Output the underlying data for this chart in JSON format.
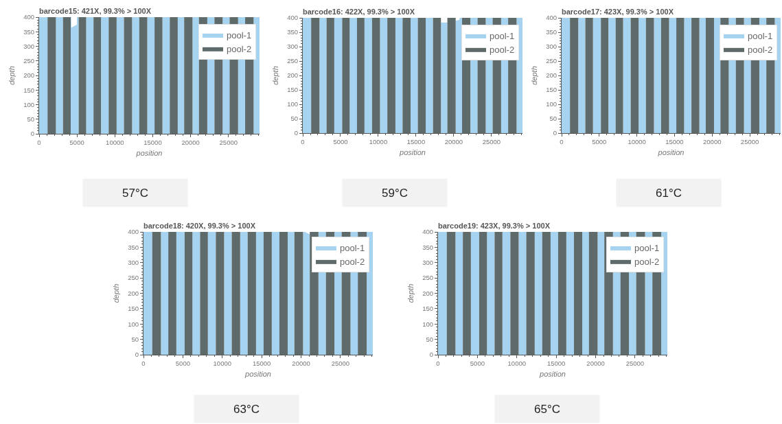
{
  "chart_data": [
    {
      "type": "area",
      "title": "barcode15: 421X, 99.3% > 100X",
      "xlabel": "position",
      "ylabel": "depth",
      "annotations": [
        "57°C"
      ],
      "legend": "top right",
      "xlim": [
        0,
        29100
      ],
      "xticks": [
        0,
        {
          "value": 1000,
          "label": null
        },
        {
          "value": 2000,
          "label": null
        },
        {
          "value": 3000,
          "label": null
        },
        {
          "value": 4000,
          "label": null
        },
        5000,
        {
          "value": 6000,
          "label": null
        },
        {
          "value": 7000,
          "label": null
        },
        {
          "value": 8000,
          "label": null
        },
        {
          "value": 9000,
          "label": null
        },
        10000,
        {
          "value": 11000,
          "label": null
        },
        {
          "value": 12000,
          "label": null
        },
        {
          "value": 13000,
          "label": null
        },
        {
          "value": 14000,
          "label": null
        },
        15000,
        {
          "value": 16000,
          "label": null
        },
        {
          "value": 17000,
          "label": null
        },
        {
          "value": 18000,
          "label": null
        },
        {
          "value": 19000,
          "label": null
        },
        20000,
        {
          "value": 21000,
          "label": null
        },
        {
          "value": 22000,
          "label": null
        },
        {
          "value": 23000,
          "label": null
        },
        {
          "value": 24000,
          "label": null
        },
        25000,
        {
          "value": 26000,
          "label": null
        },
        {
          "value": 27000,
          "label": null
        },
        {
          "value": 28000,
          "label": null
        },
        {
          "value": 29000,
          "label": null
        }
      ],
      "ylim": [
        0,
        400
      ],
      "yticks": [
        0,
        {
          "value": 10,
          "label": null
        },
        {
          "value": 20,
          "label": null
        },
        {
          "value": 30,
          "label": null
        },
        {
          "value": 40,
          "label": null
        },
        50,
        {
          "value": 60,
          "label": null
        },
        {
          "value": 70,
          "label": null
        },
        {
          "value": 80,
          "label": null
        },
        {
          "value": 90,
          "label": null
        },
        100,
        {
          "value": 110,
          "label": null
        },
        {
          "value": 120,
          "label": null
        },
        {
          "value": 130,
          "label": null
        },
        {
          "value": 140,
          "label": null
        },
        150,
        {
          "value": 160,
          "label": null
        },
        {
          "value": 170,
          "label": null
        },
        {
          "value": 180,
          "label": null
        },
        {
          "value": 190,
          "label": null
        },
        200,
        {
          "value": 210,
          "label": null
        },
        {
          "value": 220,
          "label": null
        },
        {
          "value": 230,
          "label": null
        },
        {
          "value": 240,
          "label": null
        },
        250,
        {
          "value": 260,
          "label": null
        },
        {
          "value": 270,
          "label": null
        },
        {
          "value": 280,
          "label": null
        },
        {
          "value": 290,
          "label": null
        },
        300,
        {
          "value": 310,
          "label": null
        },
        {
          "value": 320,
          "label": null
        },
        {
          "value": 330,
          "label": null
        },
        {
          "value": 340,
          "label": null
        },
        350,
        {
          "value": 360,
          "label": null
        },
        {
          "value": 370,
          "label": null
        },
        {
          "value": 380,
          "label": null
        },
        {
          "value": 390,
          "label": null
        },
        400
      ],
      "series": [
        {
          "name": "pool-1",
          "color": "#a6d3f0",
          "x": [
            0,
            1110,
            null,
            2210,
            3150,
            null,
            4170,
            4230,
            4240,
            4975,
            4985,
            5220,
            null,
            6210,
            7180,
            null,
            8170,
            9180,
            null,
            10230,
            11200,
            null,
            12270,
            13220,
            null,
            14280,
            15240,
            null,
            16280,
            17250,
            null,
            18300,
            19150,
            null,
            20250,
            21100,
            null,
            22200,
            23150,
            null,
            24230,
            25150,
            null,
            26270,
            27200,
            null,
            28320,
            29100
          ],
          "values": [
            400,
            400,
            null,
            400,
            400,
            null,
            400,
            400,
            364,
            374,
            400,
            400,
            null,
            400,
            400,
            null,
            400,
            400,
            null,
            400,
            400,
            null,
            400,
            400,
            null,
            400,
            400,
            null,
            400,
            400,
            null,
            400,
            400,
            null,
            400,
            400,
            null,
            400,
            400,
            null,
            400,
            400,
            null,
            400,
            400,
            null,
            400,
            400
          ]
        },
        {
          "name": "pool-2",
          "color": "#5f6b6b",
          "x": [
            1110,
            2210,
            null,
            3150,
            4170,
            null,
            5220,
            6210,
            null,
            7180,
            8170,
            null,
            9180,
            10230,
            null,
            11200,
            12270,
            null,
            13220,
            14280,
            null,
            15240,
            16280,
            null,
            17250,
            18300,
            null,
            19150,
            20250,
            null,
            21100,
            22200,
            null,
            23150,
            24230,
            null,
            25150,
            26270,
            null,
            27200,
            28320
          ],
          "values": [
            400,
            400,
            null,
            400,
            400,
            null,
            400,
            400,
            null,
            400,
            400,
            null,
            400,
            400,
            null,
            400,
            400,
            null,
            400,
            400,
            null,
            400,
            400,
            null,
            400,
            400,
            null,
            400,
            400,
            null,
            400,
            400,
            null,
            400,
            400,
            null,
            400,
            400,
            null,
            400,
            400
          ]
        }
      ]
    },
    {
      "type": "area",
      "title": "barcode16: 422X, 99.3% > 100X",
      "xlabel": "position",
      "ylabel": "depth",
      "annotations": [
        "59°C"
      ],
      "legend": "top right",
      "xlim": [
        0,
        29100
      ],
      "xticks": [
        0,
        {
          "value": 1000,
          "label": null
        },
        {
          "value": 2000,
          "label": null
        },
        {
          "value": 3000,
          "label": null
        },
        {
          "value": 4000,
          "label": null
        },
        5000,
        {
          "value": 6000,
          "label": null
        },
        {
          "value": 7000,
          "label": null
        },
        {
          "value": 8000,
          "label": null
        },
        {
          "value": 9000,
          "label": null
        },
        10000,
        {
          "value": 11000,
          "label": null
        },
        {
          "value": 12000,
          "label": null
        },
        {
          "value": 13000,
          "label": null
        },
        {
          "value": 14000,
          "label": null
        },
        15000,
        {
          "value": 16000,
          "label": null
        },
        {
          "value": 17000,
          "label": null
        },
        {
          "value": 18000,
          "label": null
        },
        {
          "value": 19000,
          "label": null
        },
        20000,
        {
          "value": 21000,
          "label": null
        },
        {
          "value": 22000,
          "label": null
        },
        {
          "value": 23000,
          "label": null
        },
        {
          "value": 24000,
          "label": null
        },
        25000,
        {
          "value": 26000,
          "label": null
        },
        {
          "value": 27000,
          "label": null
        },
        {
          "value": 28000,
          "label": null
        },
        {
          "value": 29000,
          "label": null
        }
      ],
      "ylim": [
        0,
        400
      ],
      "yticks": [
        0,
        {
          "value": 10,
          "label": null
        },
        {
          "value": 20,
          "label": null
        },
        {
          "value": 30,
          "label": null
        },
        {
          "value": 40,
          "label": null
        },
        50,
        {
          "value": 60,
          "label": null
        },
        {
          "value": 70,
          "label": null
        },
        {
          "value": 80,
          "label": null
        },
        {
          "value": 90,
          "label": null
        },
        100,
        {
          "value": 110,
          "label": null
        },
        {
          "value": 120,
          "label": null
        },
        {
          "value": 130,
          "label": null
        },
        {
          "value": 140,
          "label": null
        },
        150,
        {
          "value": 160,
          "label": null
        },
        {
          "value": 170,
          "label": null
        },
        {
          "value": 180,
          "label": null
        },
        {
          "value": 190,
          "label": null
        },
        200,
        {
          "value": 210,
          "label": null
        },
        {
          "value": 220,
          "label": null
        },
        {
          "value": 230,
          "label": null
        },
        {
          "value": 240,
          "label": null
        },
        250,
        {
          "value": 260,
          "label": null
        },
        {
          "value": 270,
          "label": null
        },
        {
          "value": 280,
          "label": null
        },
        {
          "value": 290,
          "label": null
        },
        300,
        {
          "value": 310,
          "label": null
        },
        {
          "value": 320,
          "label": null
        },
        {
          "value": 330,
          "label": null
        },
        {
          "value": 340,
          "label": null
        },
        350,
        {
          "value": 360,
          "label": null
        },
        {
          "value": 370,
          "label": null
        },
        {
          "value": 380,
          "label": null
        },
        {
          "value": 390,
          "label": null
        },
        400
      ],
      "series": [
        {
          "name": "pool-1",
          "color": "#a6d3f0",
          "x": [
            0,
            1110,
            null,
            2210,
            3150,
            null,
            4170,
            5220,
            null,
            6210,
            7180,
            null,
            8170,
            9180,
            null,
            10230,
            11200,
            null,
            12270,
            13220,
            null,
            14280,
            15240,
            null,
            16280,
            17250,
            null,
            18300,
            19150,
            null,
            20250,
            20750,
            20760,
            21100,
            null,
            22200,
            23150,
            null,
            24230,
            25150,
            null,
            26270,
            27200,
            null,
            28320,
            29100
          ],
          "values": [
            400,
            400,
            null,
            400,
            400,
            null,
            400,
            400,
            null,
            400,
            400,
            null,
            400,
            400,
            null,
            400,
            400,
            null,
            400,
            400,
            null,
            400,
            400,
            null,
            400,
            400,
            null,
            384,
            384,
            null,
            390,
            393,
            400,
            400,
            null,
            400,
            400,
            null,
            400,
            400,
            null,
            400,
            400,
            null,
            400,
            400
          ]
        },
        {
          "name": "pool-2",
          "color": "#5f6b6b",
          "x": [
            1110,
            2210,
            null,
            3150,
            4170,
            null,
            5220,
            6210,
            null,
            7180,
            8170,
            null,
            9180,
            10230,
            null,
            11200,
            12270,
            null,
            13220,
            14280,
            null,
            15240,
            16280,
            null,
            17250,
            18300,
            null,
            19150,
            20250,
            null,
            21100,
            22200,
            null,
            23150,
            24230,
            null,
            25150,
            26270,
            null,
            27200,
            28320
          ],
          "values": [
            400,
            400,
            null,
            400,
            400,
            null,
            400,
            400,
            null,
            400,
            400,
            null,
            400,
            400,
            null,
            400,
            400,
            null,
            400,
            400,
            null,
            400,
            400,
            null,
            400,
            400,
            null,
            400,
            400,
            null,
            400,
            400,
            null,
            400,
            400,
            null,
            400,
            400,
            null,
            400,
            400
          ]
        }
      ]
    },
    {
      "type": "area",
      "title": "barcode17: 423X, 99.3% > 100X",
      "xlabel": "position",
      "ylabel": "depth",
      "annotations": [
        "61°C"
      ],
      "legend": "top right",
      "xlim": [
        0,
        29100
      ],
      "xticks": [
        0,
        {
          "value": 1000,
          "label": null
        },
        {
          "value": 2000,
          "label": null
        },
        {
          "value": 3000,
          "label": null
        },
        {
          "value": 4000,
          "label": null
        },
        5000,
        {
          "value": 6000,
          "label": null
        },
        {
          "value": 7000,
          "label": null
        },
        {
          "value": 8000,
          "label": null
        },
        {
          "value": 9000,
          "label": null
        },
        10000,
        {
          "value": 11000,
          "label": null
        },
        {
          "value": 12000,
          "label": null
        },
        {
          "value": 13000,
          "label": null
        },
        {
          "value": 14000,
          "label": null
        },
        15000,
        {
          "value": 16000,
          "label": null
        },
        {
          "value": 17000,
          "label": null
        },
        {
          "value": 18000,
          "label": null
        },
        {
          "value": 19000,
          "label": null
        },
        20000,
        {
          "value": 21000,
          "label": null
        },
        {
          "value": 22000,
          "label": null
        },
        {
          "value": 23000,
          "label": null
        },
        {
          "value": 24000,
          "label": null
        },
        25000,
        {
          "value": 26000,
          "label": null
        },
        {
          "value": 27000,
          "label": null
        },
        {
          "value": 28000,
          "label": null
        },
        {
          "value": 29000,
          "label": null
        }
      ],
      "ylim": [
        0,
        400
      ],
      "yticks": [
        0,
        {
          "value": 10,
          "label": null
        },
        {
          "value": 20,
          "label": null
        },
        {
          "value": 30,
          "label": null
        },
        {
          "value": 40,
          "label": null
        },
        50,
        {
          "value": 60,
          "label": null
        },
        {
          "value": 70,
          "label": null
        },
        {
          "value": 80,
          "label": null
        },
        {
          "value": 90,
          "label": null
        },
        100,
        {
          "value": 110,
          "label": null
        },
        {
          "value": 120,
          "label": null
        },
        {
          "value": 130,
          "label": null
        },
        {
          "value": 140,
          "label": null
        },
        150,
        {
          "value": 160,
          "label": null
        },
        {
          "value": 170,
          "label": null
        },
        {
          "value": 180,
          "label": null
        },
        {
          "value": 190,
          "label": null
        },
        200,
        {
          "value": 210,
          "label": null
        },
        {
          "value": 220,
          "label": null
        },
        {
          "value": 230,
          "label": null
        },
        {
          "value": 240,
          "label": null
        },
        250,
        {
          "value": 260,
          "label": null
        },
        {
          "value": 270,
          "label": null
        },
        {
          "value": 280,
          "label": null
        },
        {
          "value": 290,
          "label": null
        },
        300,
        {
          "value": 310,
          "label": null
        },
        {
          "value": 320,
          "label": null
        },
        {
          "value": 330,
          "label": null
        },
        {
          "value": 340,
          "label": null
        },
        350,
        {
          "value": 360,
          "label": null
        },
        {
          "value": 370,
          "label": null
        },
        {
          "value": 380,
          "label": null
        },
        {
          "value": 390,
          "label": null
        },
        400
      ],
      "series": [
        {
          "name": "pool-1",
          "color": "#a6d3f0",
          "x": [
            0,
            1110,
            null,
            2210,
            3150,
            null,
            4170,
            5220,
            null,
            6210,
            7180,
            null,
            8170,
            9180,
            null,
            10230,
            11200,
            null,
            12270,
            13220,
            null,
            14280,
            15240,
            null,
            16280,
            17250,
            null,
            18300,
            19150,
            null,
            20250,
            21100,
            null,
            22200,
            23150,
            null,
            24230,
            25150,
            null,
            26270,
            27200,
            null,
            28320,
            29100
          ],
          "values": [
            400,
            400,
            null,
            400,
            400,
            null,
            400,
            400,
            null,
            400,
            400,
            null,
            400,
            400,
            null,
            400,
            400,
            null,
            400,
            400,
            null,
            400,
            400,
            null,
            400,
            400,
            null,
            400,
            400,
            null,
            400,
            400,
            null,
            400,
            400,
            null,
            400,
            400,
            null,
            400,
            400,
            null,
            400,
            400
          ]
        },
        {
          "name": "pool-2",
          "color": "#5f6b6b",
          "x": [
            1110,
            2210,
            null,
            3150,
            4170,
            null,
            5220,
            6210,
            null,
            7180,
            8170,
            null,
            9180,
            10230,
            null,
            11200,
            12270,
            null,
            13220,
            14280,
            null,
            15240,
            16280,
            null,
            17250,
            18300,
            null,
            19150,
            20250,
            null,
            21100,
            22200,
            null,
            23150,
            24230,
            null,
            25150,
            26270,
            null,
            27200,
            28320
          ],
          "values": [
            400,
            400,
            null,
            400,
            400,
            null,
            400,
            400,
            null,
            400,
            400,
            null,
            400,
            400,
            null,
            400,
            400,
            null,
            400,
            400,
            null,
            400,
            400,
            null,
            400,
            400,
            null,
            400,
            400,
            null,
            400,
            400,
            null,
            400,
            400,
            null,
            400,
            400,
            null,
            400,
            400
          ]
        }
      ]
    },
    {
      "type": "area",
      "title": "barcode18: 420X, 99.3% > 100X",
      "xlabel": "position",
      "ylabel": "depth",
      "annotations": [
        "63°C"
      ],
      "legend": "top right",
      "xlim": [
        0,
        29100
      ],
      "xticks": [
        0,
        {
          "value": 1000,
          "label": null
        },
        {
          "value": 2000,
          "label": null
        },
        {
          "value": 3000,
          "label": null
        },
        {
          "value": 4000,
          "label": null
        },
        5000,
        {
          "value": 6000,
          "label": null
        },
        {
          "value": 7000,
          "label": null
        },
        {
          "value": 8000,
          "label": null
        },
        {
          "value": 9000,
          "label": null
        },
        10000,
        {
          "value": 11000,
          "label": null
        },
        {
          "value": 12000,
          "label": null
        },
        {
          "value": 13000,
          "label": null
        },
        {
          "value": 14000,
          "label": null
        },
        15000,
        {
          "value": 16000,
          "label": null
        },
        {
          "value": 17000,
          "label": null
        },
        {
          "value": 18000,
          "label": null
        },
        {
          "value": 19000,
          "label": null
        },
        20000,
        {
          "value": 21000,
          "label": null
        },
        {
          "value": 22000,
          "label": null
        },
        {
          "value": 23000,
          "label": null
        },
        {
          "value": 24000,
          "label": null
        },
        25000,
        {
          "value": 26000,
          "label": null
        },
        {
          "value": 27000,
          "label": null
        },
        {
          "value": 28000,
          "label": null
        },
        {
          "value": 29000,
          "label": null
        }
      ],
      "ylim": [
        0,
        400
      ],
      "yticks": [
        0,
        {
          "value": 10,
          "label": null
        },
        {
          "value": 20,
          "label": null
        },
        {
          "value": 30,
          "label": null
        },
        {
          "value": 40,
          "label": null
        },
        50,
        {
          "value": 60,
          "label": null
        },
        {
          "value": 70,
          "label": null
        },
        {
          "value": 80,
          "label": null
        },
        {
          "value": 90,
          "label": null
        },
        100,
        {
          "value": 110,
          "label": null
        },
        {
          "value": 120,
          "label": null
        },
        {
          "value": 130,
          "label": null
        },
        {
          "value": 140,
          "label": null
        },
        150,
        {
          "value": 160,
          "label": null
        },
        {
          "value": 170,
          "label": null
        },
        {
          "value": 180,
          "label": null
        },
        {
          "value": 190,
          "label": null
        },
        200,
        {
          "value": 210,
          "label": null
        },
        {
          "value": 220,
          "label": null
        },
        {
          "value": 230,
          "label": null
        },
        {
          "value": 240,
          "label": null
        },
        250,
        {
          "value": 260,
          "label": null
        },
        {
          "value": 270,
          "label": null
        },
        {
          "value": 280,
          "label": null
        },
        {
          "value": 290,
          "label": null
        },
        300,
        {
          "value": 310,
          "label": null
        },
        {
          "value": 320,
          "label": null
        },
        {
          "value": 330,
          "label": null
        },
        {
          "value": 340,
          "label": null
        },
        350,
        {
          "value": 360,
          "label": null
        },
        {
          "value": 370,
          "label": null
        },
        {
          "value": 380,
          "label": null
        },
        {
          "value": 390,
          "label": null
        },
        400
      ],
      "series": [
        {
          "name": "pool-1",
          "color": "#a6d3f0",
          "x": [
            0,
            1110,
            null,
            2210,
            3150,
            null,
            4170,
            5220,
            null,
            6210,
            7180,
            null,
            8170,
            9180,
            null,
            10230,
            11200,
            null,
            12270,
            13220,
            null,
            14280,
            15240,
            null,
            16280,
            17250,
            null,
            18300,
            19150,
            null,
            20250,
            20500,
            21100,
            null,
            22200,
            23150,
            null,
            24230,
            25150,
            null,
            26270,
            27200,
            null,
            28320,
            29100
          ],
          "values": [
            400,
            400,
            null,
            400,
            400,
            null,
            400,
            400,
            null,
            400,
            400,
            null,
            400,
            400,
            null,
            400,
            400,
            null,
            400,
            400,
            null,
            400,
            400,
            null,
            400,
            400,
            null,
            400,
            400,
            null,
            400,
            400,
            392,
            null,
            400,
            400,
            null,
            400,
            400,
            null,
            400,
            400,
            null,
            400,
            400
          ]
        },
        {
          "name": "pool-2",
          "color": "#5f6b6b",
          "x": [
            1110,
            2210,
            null,
            3150,
            4170,
            null,
            5220,
            6210,
            null,
            7180,
            8170,
            null,
            9180,
            10230,
            null,
            11200,
            12270,
            null,
            13220,
            14280,
            null,
            15240,
            16280,
            null,
            17250,
            18300,
            null,
            19150,
            20250,
            null,
            21100,
            22200,
            null,
            23150,
            24230,
            null,
            25150,
            26270,
            null,
            27200,
            28320
          ],
          "values": [
            400,
            400,
            null,
            400,
            400,
            null,
            400,
            400,
            null,
            400,
            400,
            null,
            400,
            400,
            null,
            400,
            400,
            null,
            400,
            400,
            null,
            400,
            400,
            null,
            400,
            400,
            null,
            400,
            400,
            null,
            400,
            400,
            null,
            400,
            400,
            null,
            400,
            400,
            null,
            400,
            400
          ]
        }
      ]
    },
    {
      "type": "area",
      "title": "barcode19: 423X, 99.3% > 100X",
      "xlabel": "position",
      "ylabel": "depth",
      "annotations": [
        "65°C"
      ],
      "legend": "top right",
      "xlim": [
        0,
        29100
      ],
      "xticks": [
        0,
        {
          "value": 1000,
          "label": null
        },
        {
          "value": 2000,
          "label": null
        },
        {
          "value": 3000,
          "label": null
        },
        {
          "value": 4000,
          "label": null
        },
        5000,
        {
          "value": 6000,
          "label": null
        },
        {
          "value": 7000,
          "label": null
        },
        {
          "value": 8000,
          "label": null
        },
        {
          "value": 9000,
          "label": null
        },
        10000,
        {
          "value": 11000,
          "label": null
        },
        {
          "value": 12000,
          "label": null
        },
        {
          "value": 13000,
          "label": null
        },
        {
          "value": 14000,
          "label": null
        },
        15000,
        {
          "value": 16000,
          "label": null
        },
        {
          "value": 17000,
          "label": null
        },
        {
          "value": 18000,
          "label": null
        },
        {
          "value": 19000,
          "label": null
        },
        20000,
        {
          "value": 21000,
          "label": null
        },
        {
          "value": 22000,
          "label": null
        },
        {
          "value": 23000,
          "label": null
        },
        {
          "value": 24000,
          "label": null
        },
        25000,
        {
          "value": 26000,
          "label": null
        },
        {
          "value": 27000,
          "label": null
        },
        {
          "value": 28000,
          "label": null
        },
        {
          "value": 29000,
          "label": null
        }
      ],
      "ylim": [
        0,
        400
      ],
      "yticks": [
        0,
        {
          "value": 10,
          "label": null
        },
        {
          "value": 20,
          "label": null
        },
        {
          "value": 30,
          "label": null
        },
        {
          "value": 40,
          "label": null
        },
        50,
        {
          "value": 60,
          "label": null
        },
        {
          "value": 70,
          "label": null
        },
        {
          "value": 80,
          "label": null
        },
        {
          "value": 90,
          "label": null
        },
        100,
        {
          "value": 110,
          "label": null
        },
        {
          "value": 120,
          "label": null
        },
        {
          "value": 130,
          "label": null
        },
        {
          "value": 140,
          "label": null
        },
        150,
        {
          "value": 160,
          "label": null
        },
        {
          "value": 170,
          "label": null
        },
        {
          "value": 180,
          "label": null
        },
        {
          "value": 190,
          "label": null
        },
        200,
        {
          "value": 210,
          "label": null
        },
        {
          "value": 220,
          "label": null
        },
        {
          "value": 230,
          "label": null
        },
        {
          "value": 240,
          "label": null
        },
        250,
        {
          "value": 260,
          "label": null
        },
        {
          "value": 270,
          "label": null
        },
        {
          "value": 280,
          "label": null
        },
        {
          "value": 290,
          "label": null
        },
        300,
        {
          "value": 310,
          "label": null
        },
        {
          "value": 320,
          "label": null
        },
        {
          "value": 330,
          "label": null
        },
        {
          "value": 340,
          "label": null
        },
        350,
        {
          "value": 360,
          "label": null
        },
        {
          "value": 370,
          "label": null
        },
        {
          "value": 380,
          "label": null
        },
        {
          "value": 390,
          "label": null
        },
        400
      ],
      "series": [
        {
          "name": "pool-1",
          "color": "#a6d3f0",
          "x": [
            0,
            1110,
            null,
            2210,
            3150,
            null,
            4170,
            5220,
            null,
            6210,
            7180,
            null,
            8170,
            9180,
            null,
            10230,
            11200,
            null,
            12270,
            13220,
            null,
            14280,
            15240,
            null,
            16280,
            17250,
            null,
            18300,
            19150,
            null,
            20250,
            21100,
            null,
            22200,
            23150,
            null,
            24230,
            25150,
            null,
            26270,
            27200,
            null,
            28320,
            29100
          ],
          "values": [
            400,
            400,
            null,
            400,
            400,
            null,
            400,
            400,
            null,
            400,
            400,
            null,
            400,
            400,
            null,
            400,
            400,
            null,
            400,
            400,
            null,
            400,
            400,
            null,
            400,
            400,
            null,
            400,
            400,
            null,
            400,
            400,
            null,
            400,
            400,
            null,
            400,
            400,
            null,
            400,
            400,
            null,
            400,
            400
          ]
        },
        {
          "name": "pool-2",
          "color": "#5f6b6b",
          "x": [
            1110,
            2210,
            null,
            3150,
            4170,
            null,
            5220,
            6210,
            null,
            7180,
            8170,
            null,
            9180,
            10230,
            null,
            11200,
            12270,
            null,
            13220,
            14280,
            null,
            15240,
            16280,
            null,
            17250,
            18300,
            null,
            19150,
            20250,
            null,
            21100,
            22200,
            null,
            23150,
            24230,
            null,
            25150,
            26270,
            null,
            27200,
            28320
          ],
          "values": [
            400,
            400,
            null,
            400,
            400,
            null,
            400,
            400,
            null,
            400,
            400,
            null,
            400,
            400,
            null,
            400,
            400,
            null,
            400,
            400,
            null,
            400,
            400,
            null,
            400,
            400,
            null,
            400,
            400,
            null,
            400,
            400,
            null,
            400,
            400,
            null,
            400,
            400,
            null,
            400,
            400
          ]
        }
      ]
    }
  ]
}
